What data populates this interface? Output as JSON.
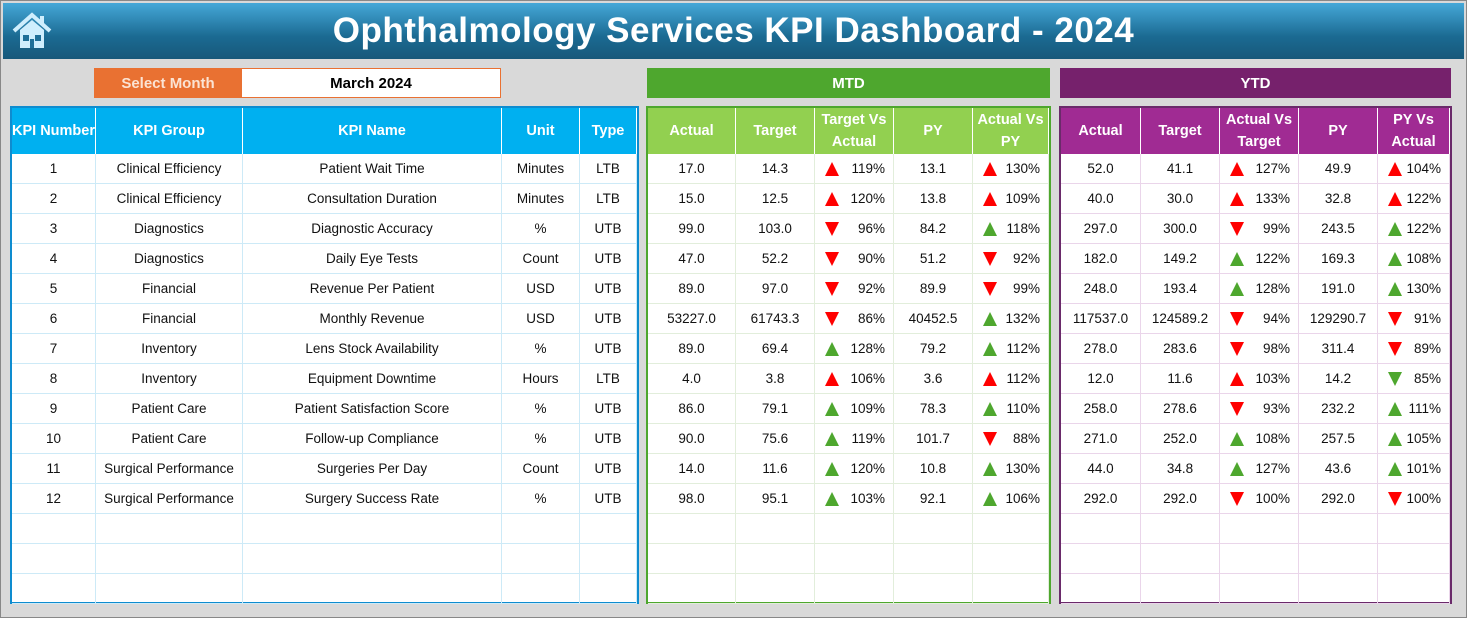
{
  "title": "Ophthalmology Services KPI Dashboard - 2024",
  "select_month": {
    "label": "Select Month",
    "value": "March 2024"
  },
  "colors": {
    "good": "#4ea72e",
    "bad": "#ff0000"
  },
  "mtd": {
    "label": "MTD",
    "headers": [
      "Actual",
      "Target",
      "Target Vs Actual",
      "PY",
      "Actual Vs PY"
    ]
  },
  "ytd": {
    "label": "YTD",
    "headers": [
      "Actual",
      "Target",
      "Actual Vs Target",
      "PY",
      "PY Vs Actual"
    ]
  },
  "kpi_headers": [
    "KPI Number",
    "KPI Group",
    "KPI Name",
    "Unit",
    "Type"
  ],
  "rows": [
    {
      "kpi": [
        "1",
        "Clinical Efficiency",
        "Patient Wait Time",
        "Minutes",
        "LTB"
      ],
      "mtd": [
        "17.0",
        "14.3",
        {
          "dir": "up",
          "status": "bad",
          "pct": "119%"
        },
        "13.1",
        {
          "dir": "up",
          "status": "bad",
          "pct": "130%"
        }
      ],
      "ytd": [
        "52.0",
        "41.1",
        {
          "dir": "up",
          "status": "bad",
          "pct": "127%"
        },
        "49.9",
        {
          "dir": "up",
          "status": "bad",
          "pct": "104%"
        }
      ]
    },
    {
      "kpi": [
        "2",
        "Clinical Efficiency",
        "Consultation Duration",
        "Minutes",
        "LTB"
      ],
      "mtd": [
        "15.0",
        "12.5",
        {
          "dir": "up",
          "status": "bad",
          "pct": "120%"
        },
        "13.8",
        {
          "dir": "up",
          "status": "bad",
          "pct": "109%"
        }
      ],
      "ytd": [
        "40.0",
        "30.0",
        {
          "dir": "up",
          "status": "bad",
          "pct": "133%"
        },
        "32.8",
        {
          "dir": "up",
          "status": "bad",
          "pct": "122%"
        }
      ]
    },
    {
      "kpi": [
        "3",
        "Diagnostics",
        "Diagnostic Accuracy",
        "%",
        "UTB"
      ],
      "mtd": [
        "99.0",
        "103.0",
        {
          "dir": "down",
          "status": "bad",
          "pct": "96%"
        },
        "84.2",
        {
          "dir": "up",
          "status": "good",
          "pct": "118%"
        }
      ],
      "ytd": [
        "297.0",
        "300.0",
        {
          "dir": "down",
          "status": "bad",
          "pct": "99%"
        },
        "243.5",
        {
          "dir": "up",
          "status": "good",
          "pct": "122%"
        }
      ]
    },
    {
      "kpi": [
        "4",
        "Diagnostics",
        "Daily Eye Tests",
        "Count",
        "UTB"
      ],
      "mtd": [
        "47.0",
        "52.2",
        {
          "dir": "down",
          "status": "bad",
          "pct": "90%"
        },
        "51.2",
        {
          "dir": "down",
          "status": "bad",
          "pct": "92%"
        }
      ],
      "ytd": [
        "182.0",
        "149.2",
        {
          "dir": "up",
          "status": "good",
          "pct": "122%"
        },
        "169.3",
        {
          "dir": "up",
          "status": "good",
          "pct": "108%"
        }
      ]
    },
    {
      "kpi": [
        "5",
        "Financial",
        "Revenue Per Patient",
        "USD",
        "UTB"
      ],
      "mtd": [
        "89.0",
        "97.0",
        {
          "dir": "down",
          "status": "bad",
          "pct": "92%"
        },
        "89.9",
        {
          "dir": "down",
          "status": "bad",
          "pct": "99%"
        }
      ],
      "ytd": [
        "248.0",
        "193.4",
        {
          "dir": "up",
          "status": "good",
          "pct": "128%"
        },
        "191.0",
        {
          "dir": "up",
          "status": "good",
          "pct": "130%"
        }
      ]
    },
    {
      "kpi": [
        "6",
        "Financial",
        "Monthly Revenue",
        "USD",
        "UTB"
      ],
      "mtd": [
        "53227.0",
        "61743.3",
        {
          "dir": "down",
          "status": "bad",
          "pct": "86%"
        },
        "40452.5",
        {
          "dir": "up",
          "status": "good",
          "pct": "132%"
        }
      ],
      "ytd": [
        "117537.0",
        "124589.2",
        {
          "dir": "down",
          "status": "bad",
          "pct": "94%"
        },
        "129290.7",
        {
          "dir": "down",
          "status": "bad",
          "pct": "91%"
        }
      ]
    },
    {
      "kpi": [
        "7",
        "Inventory",
        "Lens Stock Availability",
        "%",
        "UTB"
      ],
      "mtd": [
        "89.0",
        "69.4",
        {
          "dir": "up",
          "status": "good",
          "pct": "128%"
        },
        "79.2",
        {
          "dir": "up",
          "status": "good",
          "pct": "112%"
        }
      ],
      "ytd": [
        "278.0",
        "283.6",
        {
          "dir": "down",
          "status": "bad",
          "pct": "98%"
        },
        "311.4",
        {
          "dir": "down",
          "status": "bad",
          "pct": "89%"
        }
      ]
    },
    {
      "kpi": [
        "8",
        "Inventory",
        "Equipment Downtime",
        "Hours",
        "LTB"
      ],
      "mtd": [
        "4.0",
        "3.8",
        {
          "dir": "up",
          "status": "bad",
          "pct": "106%"
        },
        "3.6",
        {
          "dir": "up",
          "status": "bad",
          "pct": "112%"
        }
      ],
      "ytd": [
        "12.0",
        "11.6",
        {
          "dir": "up",
          "status": "bad",
          "pct": "103%"
        },
        "14.2",
        {
          "dir": "down",
          "status": "good",
          "pct": "85%"
        }
      ]
    },
    {
      "kpi": [
        "9",
        "Patient Care",
        "Patient Satisfaction Score",
        "%",
        "UTB"
      ],
      "mtd": [
        "86.0",
        "79.1",
        {
          "dir": "up",
          "status": "good",
          "pct": "109%"
        },
        "78.3",
        {
          "dir": "up",
          "status": "good",
          "pct": "110%"
        }
      ],
      "ytd": [
        "258.0",
        "278.6",
        {
          "dir": "down",
          "status": "bad",
          "pct": "93%"
        },
        "232.2",
        {
          "dir": "up",
          "status": "good",
          "pct": "111%"
        }
      ]
    },
    {
      "kpi": [
        "10",
        "Patient Care",
        "Follow-up Compliance",
        "%",
        "UTB"
      ],
      "mtd": [
        "90.0",
        "75.6",
        {
          "dir": "up",
          "status": "good",
          "pct": "119%"
        },
        "101.7",
        {
          "dir": "down",
          "status": "bad",
          "pct": "88%"
        }
      ],
      "ytd": [
        "271.0",
        "252.0",
        {
          "dir": "up",
          "status": "good",
          "pct": "108%"
        },
        "257.5",
        {
          "dir": "up",
          "status": "good",
          "pct": "105%"
        }
      ]
    },
    {
      "kpi": [
        "11",
        "Surgical Performance",
        "Surgeries Per Day",
        "Count",
        "UTB"
      ],
      "mtd": [
        "14.0",
        "11.6",
        {
          "dir": "up",
          "status": "good",
          "pct": "120%"
        },
        "10.8",
        {
          "dir": "up",
          "status": "good",
          "pct": "130%"
        }
      ],
      "ytd": [
        "44.0",
        "34.8",
        {
          "dir": "up",
          "status": "good",
          "pct": "127%"
        },
        "43.6",
        {
          "dir": "up",
          "status": "good",
          "pct": "101%"
        }
      ]
    },
    {
      "kpi": [
        "12",
        "Surgical Performance",
        "Surgery Success Rate",
        "%",
        "UTB"
      ],
      "mtd": [
        "98.0",
        "95.1",
        {
          "dir": "up",
          "status": "good",
          "pct": "103%"
        },
        "92.1",
        {
          "dir": "up",
          "status": "good",
          "pct": "106%"
        }
      ],
      "ytd": [
        "292.0",
        "292.0",
        {
          "dir": "down",
          "status": "bad",
          "pct": "100%"
        },
        "292.0",
        {
          "dir": "down",
          "status": "bad",
          "pct": "100%"
        }
      ]
    }
  ]
}
